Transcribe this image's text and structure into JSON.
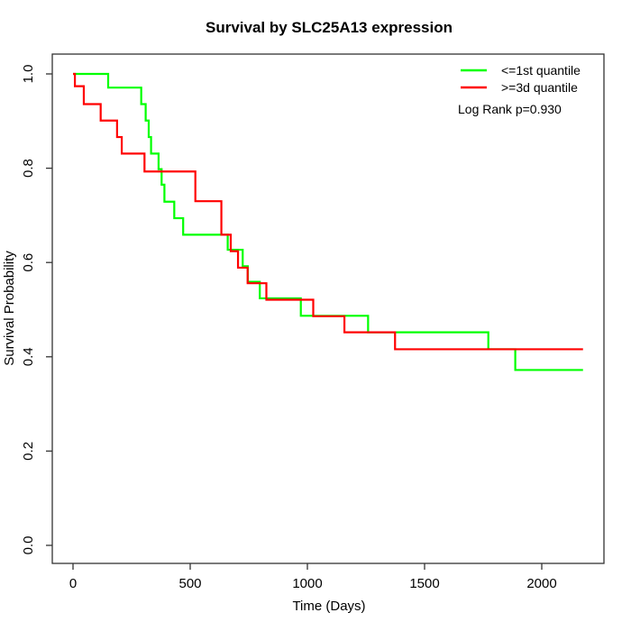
{
  "chart_data": {
    "type": "line",
    "subtype": "kaplan-meier-step",
    "title": "Survival by SLC25A13 expression",
    "xlabel": "Time (Days)",
    "ylabel": "Survival Probability",
    "x_ticks": [
      0,
      500,
      1000,
      1500,
      2000
    ],
    "y_ticks": [
      0.0,
      0.2,
      0.4,
      0.6,
      0.8,
      1.0
    ],
    "y_tick_labels": [
      "0.0",
      "0.2",
      "0.4",
      "0.6",
      "0.8",
      "1.0"
    ],
    "xlim": [
      -90,
      2265
    ],
    "ylim": [
      -0.04,
      1.04
    ],
    "grid": false,
    "legend_position": "top-right",
    "annotation": "Log Rank p=0.930",
    "axis_color": "#333333",
    "series": [
      {
        "name": "<=1st quantile",
        "color": "#00ff00",
        "end_time": 2176,
        "points": [
          [
            0,
            1.0
          ],
          [
            150,
            0.971
          ],
          [
            291,
            0.936
          ],
          [
            310,
            0.901
          ],
          [
            323,
            0.866
          ],
          [
            333,
            0.831
          ],
          [
            365,
            0.798
          ],
          [
            378,
            0.765
          ],
          [
            390,
            0.729
          ],
          [
            432,
            0.694
          ],
          [
            470,
            0.659
          ],
          [
            660,
            0.627
          ],
          [
            724,
            0.592
          ],
          [
            746,
            0.559
          ],
          [
            797,
            0.524
          ],
          [
            972,
            0.487
          ],
          [
            1259,
            0.452
          ],
          [
            1772,
            0.416
          ],
          [
            1887,
            0.372
          ]
        ]
      },
      {
        "name": ">=3d quantile",
        "color": "#ff0000",
        "end_time": 2176,
        "points": [
          [
            0,
            1.0
          ],
          [
            8,
            0.974
          ],
          [
            46,
            0.936
          ],
          [
            118,
            0.901
          ],
          [
            188,
            0.866
          ],
          [
            208,
            0.831
          ],
          [
            305,
            0.793
          ],
          [
            522,
            0.73
          ],
          [
            633,
            0.659
          ],
          [
            673,
            0.624
          ],
          [
            704,
            0.589
          ],
          [
            745,
            0.556
          ],
          [
            825,
            0.521
          ],
          [
            1025,
            0.486
          ],
          [
            1158,
            0.452
          ],
          [
            1374,
            0.416
          ]
        ]
      }
    ]
  }
}
